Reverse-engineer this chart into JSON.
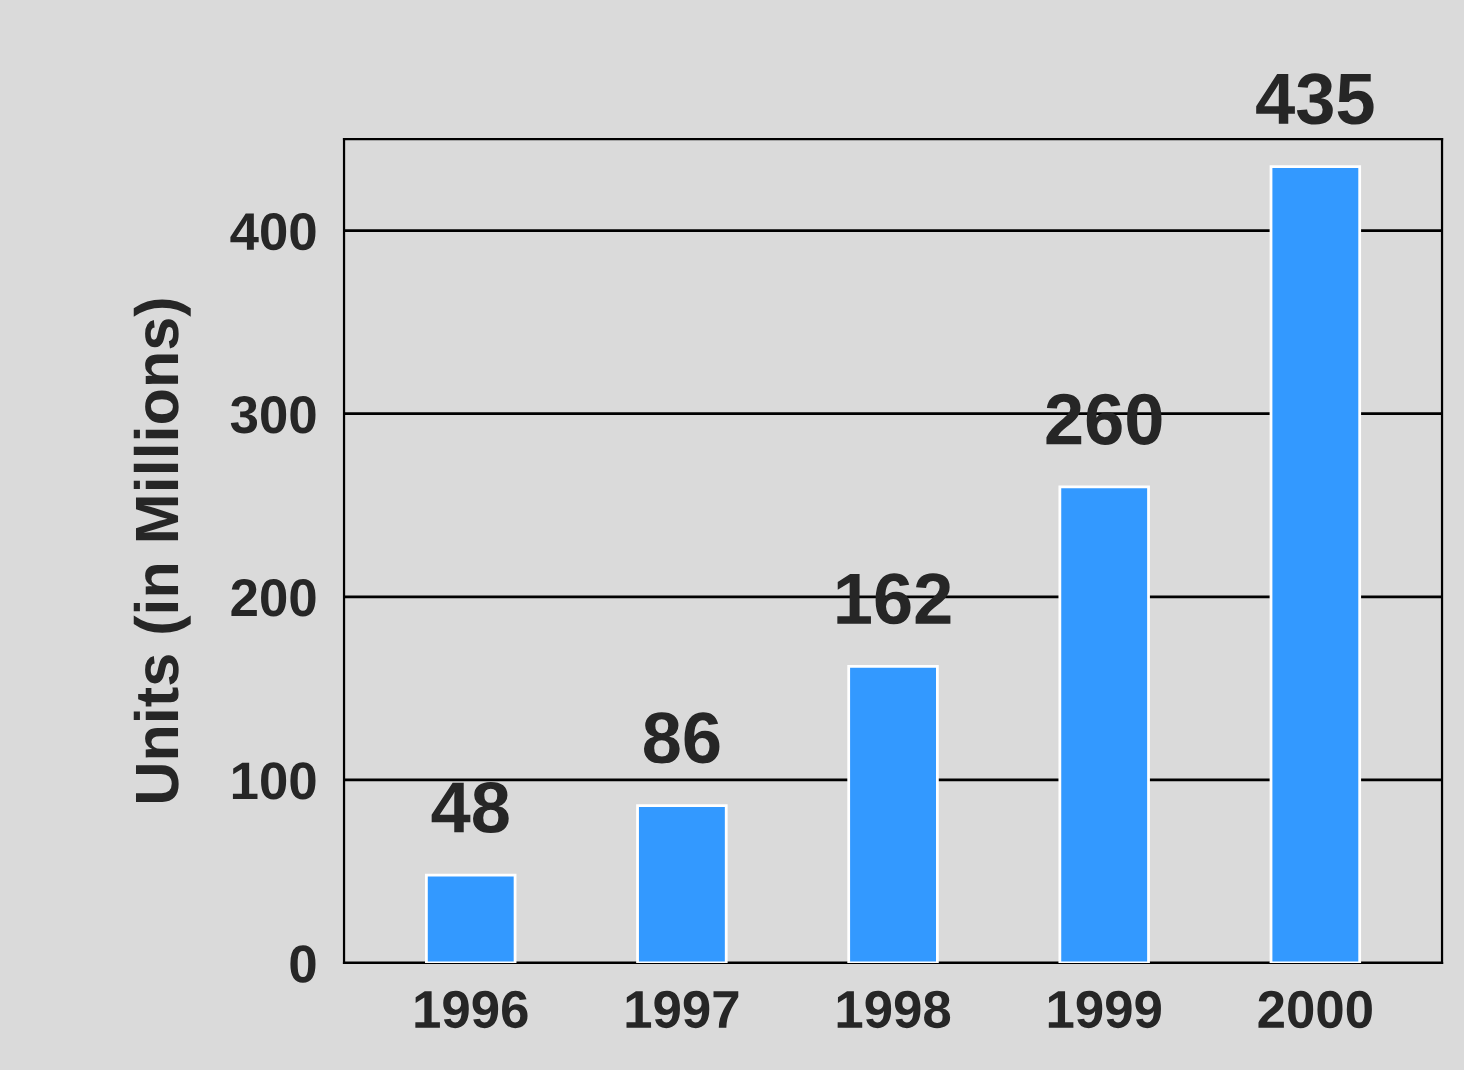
{
  "chart_data": {
    "type": "bar",
    "ylabel": "Units (in Millions)",
    "categories": [
      "1996",
      "1997",
      "1998",
      "1999",
      "2000"
    ],
    "values": [
      48,
      86,
      162,
      260,
      435
    ],
    "color": "#3399ff",
    "ylim": [
      0,
      450
    ],
    "yticks": [
      0,
      100,
      200,
      300,
      400
    ],
    "grid": "y",
    "data_labels": true
  }
}
